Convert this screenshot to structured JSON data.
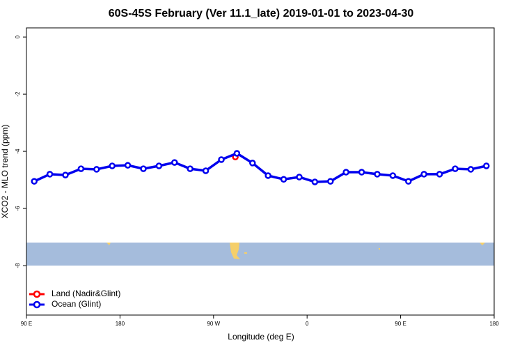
{
  "chart_data": {
    "type": "line",
    "title": "60S-45S February (Ver 11.1_late)   2019-01-01 to 2023-04-30",
    "xlabel": "Longitude (deg E)",
    "ylabel": "XCO2 - MLO trend (ppm)",
    "xlim": [
      90,
      540
    ],
    "ylim": [
      -9.73,
      0.32
    ],
    "xticks": [
      {
        "value": 90,
        "label": "90 E"
      },
      {
        "value": 180,
        "label": "180"
      },
      {
        "value": 270,
        "label": "90 W"
      },
      {
        "value": 360,
        "label": "0"
      },
      {
        "value": 450,
        "label": "90 E"
      },
      {
        "value": 540,
        "label": "180"
      }
    ],
    "yticks": [
      0,
      -2,
      -4,
      -6,
      -8
    ],
    "legend": "bottom-left",
    "series": [
      {
        "name": "Land (Nadir&Glint)",
        "color": "#ff0000",
        "x": [
          291
        ],
        "values": [
          -4.2
        ]
      },
      {
        "name": "Ocean (Glint)",
        "color": "#0000ee",
        "x": [
          97.5,
          112.5,
          127.5,
          142.5,
          157.5,
          172.5,
          187.5,
          202.5,
          217.5,
          232.5,
          247.5,
          262.5,
          277.5,
          292.5,
          307.5,
          322.5,
          337.5,
          352.5,
          367.5,
          382.5,
          397.5,
          412.5,
          427.5,
          442.5,
          457.5,
          472.5,
          487.5,
          502.5,
          517.5,
          532.5
        ],
        "values": [
          -5.05,
          -4.8,
          -4.83,
          -4.61,
          -4.63,
          -4.51,
          -4.49,
          -4.61,
          -4.51,
          -4.39,
          -4.61,
          -4.68,
          -4.29,
          -4.07,
          -4.41,
          -4.85,
          -4.98,
          -4.9,
          -5.07,
          -5.05,
          -4.73,
          -4.73,
          -4.8,
          -4.85,
          -5.05,
          -4.8,
          -4.8,
          -4.61,
          -4.63,
          -4.51
        ]
      }
    ]
  }
}
